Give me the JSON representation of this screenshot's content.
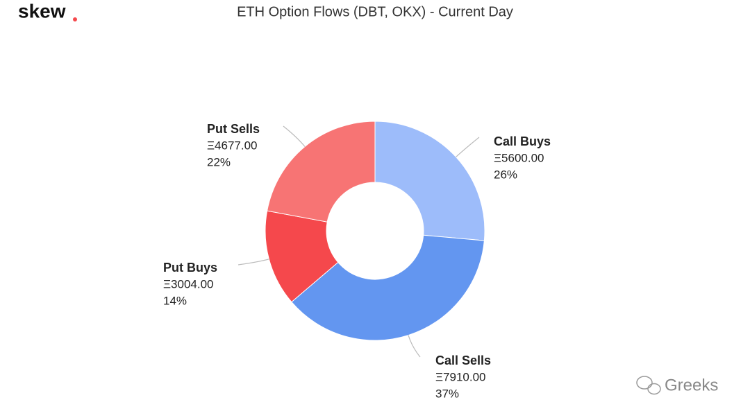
{
  "logo": "skew",
  "watermark": "Greeks",
  "chart_data": {
    "type": "donut",
    "title": "ETH Option Flows (DBT, OKX) - Current Day",
    "categories": [
      "Call Buys",
      "Call Sells",
      "Put Buys",
      "Put Sells"
    ],
    "values": [
      5600,
      7910,
      3004,
      4677
    ],
    "value_labels": [
      "Ξ5600.00",
      "Ξ7910.00",
      "Ξ3004.00",
      "Ξ4677.00"
    ],
    "percent_labels": [
      "26%",
      "37%",
      "14%",
      "22%"
    ],
    "colors": [
      "#9dbcfa",
      "#6396f0",
      "#f5484c",
      "#f77474"
    ]
  }
}
